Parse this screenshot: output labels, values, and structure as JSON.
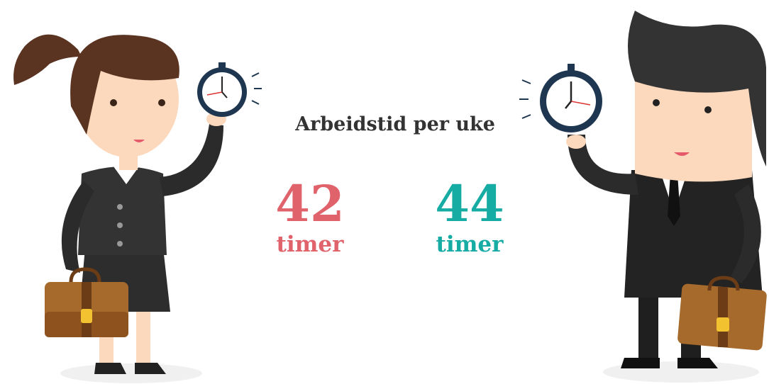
{
  "title": "Arbeidstid per uke",
  "stats": [
    {
      "value": 42,
      "unit": "timer",
      "color": "#e0636b"
    },
    {
      "value": 44,
      "unit": "timer",
      "color": "#16aca4"
    }
  ]
}
